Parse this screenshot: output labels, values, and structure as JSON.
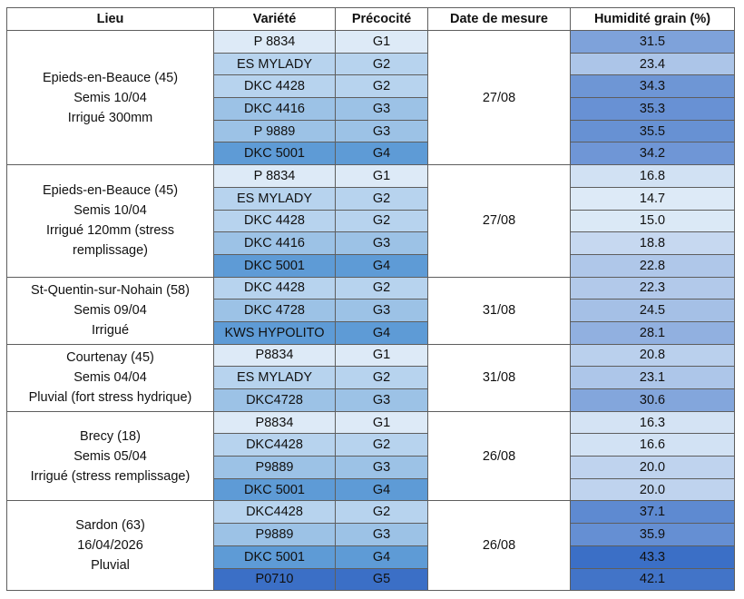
{
  "headers": {
    "lieu": "Lieu",
    "variete": "Variété",
    "precocite": "Précocité",
    "date": "Date de mesure",
    "humidite": "Humidité grain (%)"
  },
  "shade_colors": {
    "G1": "#ddeaf7",
    "G2": "#b7d3ee",
    "G3": "#9cc2e6",
    "G4": "#5e9bd6",
    "G5": "#3b6fc6"
  },
  "humidity_scale": {
    "min": 14.7,
    "max": 43.3,
    "low_color": [
      221,
      234,
      247
    ],
    "high_color": [
      59,
      111,
      198
    ]
  },
  "groups": [
    {
      "lieu": [
        "Epieds-en-Beauce (45)",
        "Semis 10/04",
        "Irrigué 300mm"
      ],
      "date": "27/08",
      "rows": [
        {
          "variete": "P 8834",
          "precocite": "G1",
          "humidite": "31.5"
        },
        {
          "variete": "ES MYLADY",
          "precocite": "G2",
          "humidite": "23.4"
        },
        {
          "variete": "DKC 4428",
          "precocite": "G2",
          "humidite": "34.3"
        },
        {
          "variete": "DKC 4416",
          "precocite": "G3",
          "humidite": "35.3"
        },
        {
          "variete": "P 9889",
          "precocite": "G3",
          "humidite": "35.5"
        },
        {
          "variete": "DKC 5001",
          "precocite": "G4",
          "humidite": "34.2"
        }
      ]
    },
    {
      "lieu": [
        "Epieds-en-Beauce (45)",
        "Semis 10/04",
        "Irrigué 120mm (stress",
        "remplissage)"
      ],
      "date": "27/08",
      "rows": [
        {
          "variete": "P 8834",
          "precocite": "G1",
          "humidite": "16.8"
        },
        {
          "variete": "ES MYLADY",
          "precocite": "G2",
          "humidite": "14.7"
        },
        {
          "variete": "DKC 4428",
          "precocite": "G2",
          "humidite": "15.0"
        },
        {
          "variete": "DKC 4416",
          "precocite": "G3",
          "humidite": "18.8"
        },
        {
          "variete": "DKC 5001",
          "precocite": "G4",
          "humidite": "22.8"
        }
      ]
    },
    {
      "lieu": [
        "St-Quentin-sur-Nohain (58)",
        "Semis 09/04",
        "Irrigué"
      ],
      "date": "31/08",
      "rows": [
        {
          "variete": "DKC 4428",
          "precocite": "G2",
          "humidite": "22.3"
        },
        {
          "variete": "DKC 4728",
          "precocite": "G3",
          "humidite": "24.5"
        },
        {
          "variete": "KWS HYPOLITO",
          "precocite": "G4",
          "humidite": "28.1"
        }
      ]
    },
    {
      "lieu": [
        "Courtenay (45)",
        "Semis 04/04",
        "Pluvial (fort stress hydrique)"
      ],
      "date": "31/08",
      "rows": [
        {
          "variete": "P8834",
          "precocite": "G1",
          "humidite": "20.8"
        },
        {
          "variete": "ES MYLADY",
          "precocite": "G2",
          "humidite": "23.1"
        },
        {
          "variete": "DKC4728",
          "precocite": "G3",
          "humidite": "30.6"
        }
      ]
    },
    {
      "lieu": [
        "Brecy (18)",
        "Semis 05/04",
        "Irrigué (stress remplissage)"
      ],
      "date": "26/08",
      "rows": [
        {
          "variete": "P8834",
          "precocite": "G1",
          "humidite": "16.3"
        },
        {
          "variete": "DKC4428",
          "precocite": "G2",
          "humidite": "16.6"
        },
        {
          "variete": "P9889",
          "precocite": "G3",
          "humidite": "20.0"
        },
        {
          "variete": "DKC 5001",
          "precocite": "G4",
          "humidite": "20.0"
        }
      ]
    },
    {
      "lieu": [
        "Sardon (63)",
        "16/04/2026",
        "Pluvial"
      ],
      "date": "26/08",
      "rows": [
        {
          "variete": "DKC4428",
          "precocite": "G2",
          "humidite": "37.1"
        },
        {
          "variete": "P9889",
          "precocite": "G3",
          "humidite": "35.9"
        },
        {
          "variete": "DKC 5001",
          "precocite": "G4",
          "humidite": "43.3"
        },
        {
          "variete": "P0710",
          "precocite": "G5",
          "humidite": "42.1"
        }
      ]
    }
  ]
}
